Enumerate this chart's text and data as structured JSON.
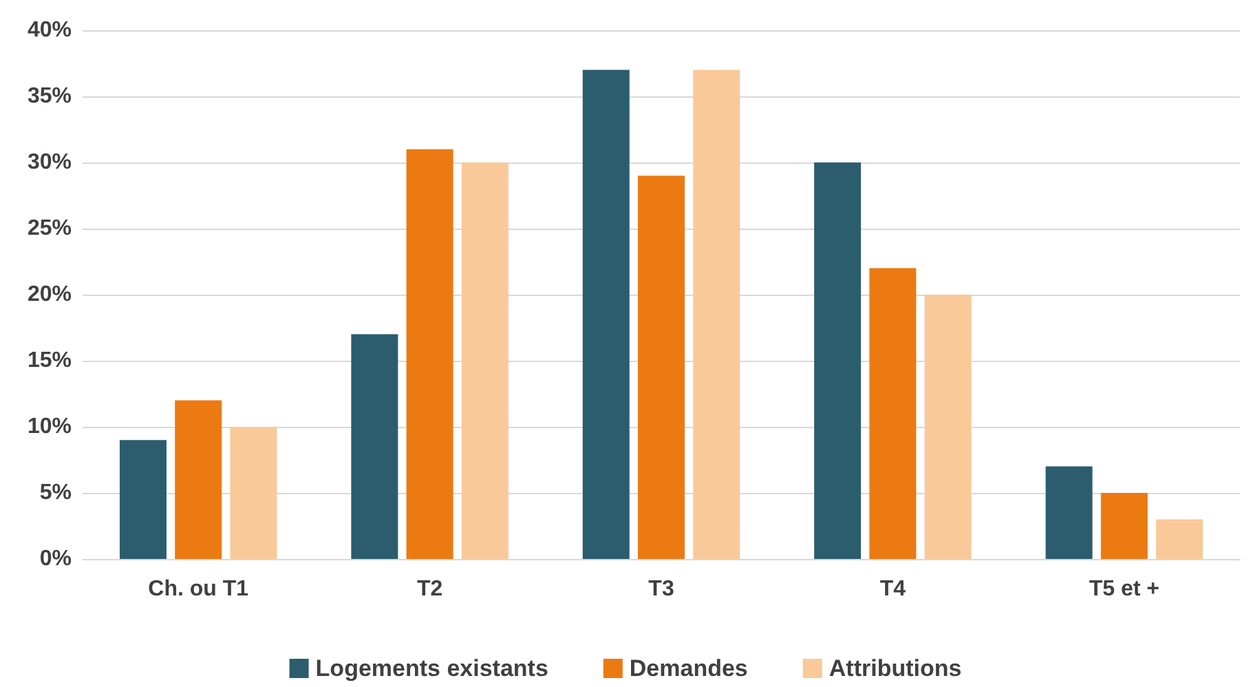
{
  "chart_data": {
    "type": "bar",
    "categories": [
      "Ch. ou T1",
      "T2",
      "T3",
      "T4",
      "T5 et +"
    ],
    "series": [
      {
        "name": "Logements existants",
        "color": "#2b5d6e",
        "values": [
          9,
          17,
          37,
          30,
          7
        ]
      },
      {
        "name": "Demandes",
        "color": "#ec7a12",
        "values": [
          12,
          31,
          29,
          22,
          5
        ]
      },
      {
        "name": "Attributions",
        "color": "#f9c999",
        "values": [
          10,
          30,
          37,
          20,
          3
        ]
      }
    ],
    "ylim": [
      0,
      40
    ],
    "yticks": [
      {
        "value": 0,
        "label": "0%"
      },
      {
        "value": 5,
        "label": "5%"
      },
      {
        "value": 10,
        "label": "10%"
      },
      {
        "value": 15,
        "label": "15%"
      },
      {
        "value": 20,
        "label": "20%"
      },
      {
        "value": 25,
        "label": "25%"
      },
      {
        "value": 30,
        "label": "30%"
      },
      {
        "value": 35,
        "label": "35%"
      },
      {
        "value": 40,
        "label": "40%"
      }
    ],
    "grid": "y",
    "legend": "bottom"
  }
}
